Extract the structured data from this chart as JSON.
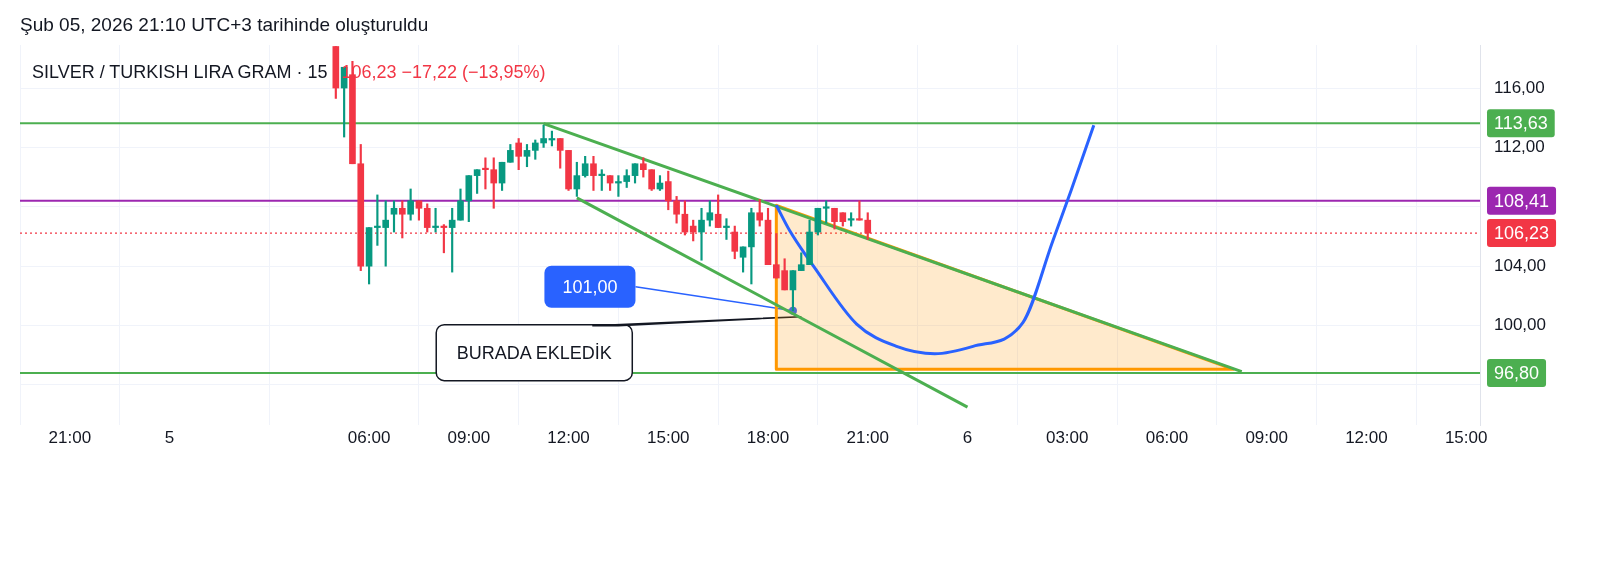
{
  "chart_data": {
    "type": "candlestick",
    "title": "Şub 05, 2026 21:10 UTC+3 tarihinde oluşturuldu",
    "subtitle": "SILVER / TURKISH LIRA GRAM · 15",
    "x": [
      "2026-02-05T05:00",
      "2026-02-05T05:15",
      "2026-02-05T05:30",
      "2026-02-05T05:45",
      "2026-02-05T06:00",
      "2026-02-05T06:15",
      "2026-02-05T06:30",
      "2026-02-05T06:45",
      "2026-02-05T07:00",
      "2026-02-05T07:15",
      "2026-02-05T07:30",
      "2026-02-05T07:45",
      "2026-02-05T08:00",
      "2026-02-05T08:15",
      "2026-02-05T08:30",
      "2026-02-05T08:45",
      "2026-02-05T09:00",
      "2026-02-05T09:15",
      "2026-02-05T09:30",
      "2026-02-05T09:45",
      "2026-02-05T10:00",
      "2026-02-05T10:15",
      "2026-02-05T10:30",
      "2026-02-05T10:45",
      "2026-02-05T11:00",
      "2026-02-05T11:15",
      "2026-02-05T11:30",
      "2026-02-05T11:45",
      "2026-02-05T12:00",
      "2026-02-05T12:15",
      "2026-02-05T12:30",
      "2026-02-05T12:45",
      "2026-02-05T13:00",
      "2026-02-05T13:15",
      "2026-02-05T13:30",
      "2026-02-05T13:45",
      "2026-02-05T14:00",
      "2026-02-05T14:15",
      "2026-02-05T14:30",
      "2026-02-05T14:45",
      "2026-02-05T15:00",
      "2026-02-05T15:15",
      "2026-02-05T15:30",
      "2026-02-05T15:45",
      "2026-02-05T16:00",
      "2026-02-05T16:15",
      "2026-02-05T16:30",
      "2026-02-05T16:45",
      "2026-02-05T17:00",
      "2026-02-05T17:15",
      "2026-02-05T17:30",
      "2026-02-05T17:45",
      "2026-02-05T18:00",
      "2026-02-05T18:15",
      "2026-02-05T18:30",
      "2026-02-05T18:45",
      "2026-02-05T19:00",
      "2026-02-05T19:15",
      "2026-02-05T19:30",
      "2026-02-05T19:45",
      "2026-02-05T20:00",
      "2026-02-05T20:15",
      "2026-02-05T20:30",
      "2026-02-05T20:45",
      "2026-02-05T21:00"
    ],
    "ohlc": [
      [
        118.8,
        118.8,
        115.3,
        116.0
      ],
      [
        116.0,
        117.4,
        112.7,
        117.4
      ],
      [
        116.9,
        117.8,
        110.9,
        110.9
      ],
      [
        110.9,
        112.2,
        103.7,
        104.0
      ],
      [
        104.0,
        106.6,
        102.8,
        106.6
      ],
      [
        106.6,
        108.8,
        105.4,
        106.7
      ],
      [
        106.6,
        108.4,
        104.0,
        107.1
      ],
      [
        107.5,
        108.4,
        106.3,
        107.9
      ],
      [
        107.9,
        108.4,
        105.9,
        107.5
      ],
      [
        107.5,
        109.2,
        107.1,
        108.4
      ],
      [
        108.4,
        108.4,
        107.1,
        107.9
      ],
      [
        107.9,
        108.2,
        106.3,
        106.6
      ],
      [
        106.6,
        107.9,
        106.3,
        106.7
      ],
      [
        106.7,
        106.8,
        104.9,
        106.6
      ],
      [
        106.6,
        107.9,
        103.6,
        107.1
      ],
      [
        107.1,
        109.2,
        107.1,
        108.4
      ],
      [
        108.4,
        110.1,
        107.0,
        110.1
      ],
      [
        110.1,
        110.5,
        108.9,
        110.5
      ],
      [
        110.6,
        111.3,
        109.2,
        110.5
      ],
      [
        110.5,
        111.3,
        107.9,
        109.6
      ],
      [
        109.6,
        111.0,
        109.1,
        111.0
      ],
      [
        111.0,
        112.2,
        111.0,
        111.8
      ],
      [
        112.3,
        112.6,
        110.5,
        111.4
      ],
      [
        111.4,
        112.2,
        110.7,
        111.8
      ],
      [
        111.8,
        112.5,
        111.2,
        112.3
      ],
      [
        112.3,
        113.5,
        112.0,
        112.6
      ],
      [
        112.5,
        113.1,
        112.1,
        112.6
      ],
      [
        112.6,
        112.6,
        110.6,
        111.8
      ],
      [
        111.8,
        111.8,
        109.1,
        109.2
      ],
      [
        109.2,
        111.0,
        108.7,
        110.1
      ],
      [
        110.1,
        111.4,
        110.0,
        110.9
      ],
      [
        110.9,
        111.4,
        109.1,
        110.1
      ],
      [
        110.1,
        110.5,
        109.1,
        110.2
      ],
      [
        110.1,
        110.1,
        109.1,
        109.6
      ],
      [
        109.6,
        110.1,
        108.7,
        109.7
      ],
      [
        109.7,
        110.5,
        109.3,
        110.1
      ],
      [
        110.1,
        110.9,
        109.6,
        110.9
      ],
      [
        110.9,
        111.3,
        110.0,
        110.5
      ],
      [
        110.5,
        110.5,
        109.1,
        109.2
      ],
      [
        109.2,
        110.1,
        109.1,
        109.6
      ],
      [
        109.7,
        110.4,
        107.8,
        108.4
      ],
      [
        108.4,
        108.7,
        106.9,
        107.5
      ],
      [
        107.5,
        108.4,
        106.1,
        106.3
      ],
      [
        106.7,
        107.1,
        105.7,
        106.3
      ],
      [
        106.3,
        107.9,
        104.4,
        107.1
      ],
      [
        107.1,
        108.4,
        106.7,
        107.6
      ],
      [
        107.5,
        108.8,
        106.6,
        106.6
      ],
      [
        106.6,
        107.2,
        105.8,
        106.7
      ],
      [
        106.3,
        106.7,
        104.5,
        105.0
      ],
      [
        104.6,
        105.3,
        103.6,
        105.3
      ],
      [
        105.3,
        107.9,
        102.8,
        107.6
      ],
      [
        107.6,
        108.5,
        106.7,
        107.1
      ],
      [
        107.1,
        107.9,
        104.1,
        104.1
      ],
      [
        104.1,
        106.2,
        103.2,
        103.2
      ],
      [
        103.7,
        104.5,
        102.4,
        102.4
      ],
      [
        102.4,
        103.7,
        101.0,
        103.7
      ],
      [
        103.7,
        104.9,
        103.7,
        104.1
      ],
      [
        104.1,
        107.1,
        104.1,
        106.3
      ],
      [
        106.3,
        107.9,
        106.1,
        107.9
      ],
      [
        107.9,
        108.4,
        106.9,
        108.0
      ],
      [
        107.9,
        107.9,
        106.5,
        107.0
      ],
      [
        107.6,
        107.6,
        106.7,
        107.0
      ],
      [
        107.1,
        107.6,
        106.7,
        107.2
      ],
      [
        107.2,
        108.4,
        107.1,
        107.1
      ],
      [
        107.1,
        107.6,
        105.8,
        106.23
      ]
    ],
    "colors": [
      "#f23645",
      "#089981",
      "#f23645",
      "#f23645",
      "#089981",
      "#089981",
      "#089981",
      "#089981",
      "#f23645",
      "#089981",
      "#f23645",
      "#f23645",
      "#089981",
      "#f23645",
      "#089981",
      "#089981",
      "#089981",
      "#089981",
      "#f23645",
      "#f23645",
      "#089981",
      "#089981",
      "#f23645",
      "#089981",
      "#089981",
      "#089981",
      "#089981",
      "#f23645",
      "#f23645",
      "#089981",
      "#089981",
      "#f23645",
      "#089981",
      "#f23645",
      "#089981",
      "#089981",
      "#089981",
      "#f23645",
      "#f23645",
      "#089981",
      "#f23645",
      "#f23645",
      "#f23645",
      "#f23645",
      "#089981",
      "#089981",
      "#f23645",
      "#089981",
      "#f23645",
      "#089981",
      "#089981",
      "#f23645",
      "#f23645",
      "#f23645",
      "#f23645",
      "#089981",
      "#089981",
      "#089981",
      "#089981",
      "#089981",
      "#f23645",
      "#f23645",
      "#089981",
      "#f23645",
      "#f23645"
    ],
    "series": [
      {
        "type": "area",
        "color": "#ff9800",
        "x": [
          "2026-02-05T18:15",
          "2026-02-05T18:15",
          "2026-02-06T08:00",
          "2026-02-05T18:15"
        ],
        "values": [
          108.1,
          97.05,
          97.05,
          108.1
        ]
      },
      {
        "type": "line",
        "color": "#4caf50",
        "x": [
          "2026-02-05T11:15",
          "2026-02-06T08:15"
        ],
        "values": [
          113.6,
          96.9
        ]
      },
      {
        "type": "line",
        "color": "#4caf50",
        "x": [
          "2026-02-05T12:15",
          "2026-02-06T00:00"
        ],
        "values": [
          108.6,
          94.5
        ]
      },
      {
        "type": "line",
        "color": "#2962ff",
        "x": [
          "2026-02-05T18:15",
          "2026-02-05T18:39",
          "2026-02-05T19:24",
          "2026-02-05T20:40",
          "2026-02-05T21:52",
          "2026-02-05T23:01",
          "2026-02-06T00:10",
          "2026-02-06T01:40",
          "2026-02-06T02:34",
          "2026-02-06T03:07",
          "2026-02-06T03:48"
        ],
        "values": [
          108.1,
          106.4,
          103.9,
          100.1,
          98.6,
          98.1,
          98.6,
          100.2,
          105.7,
          109.1,
          113.5
        ]
      }
    ],
    "xlim": [
      "2026-02-04T19:30",
      "2026-02-06T15:25"
    ],
    "xticks": [
      {
        "value": "2026-02-04T21:00",
        "label": "21:00"
      },
      {
        "value": "2026-02-05T00:00",
        "label": "5"
      },
      {
        "value": "2026-02-05T06:00",
        "label": "06:00"
      },
      {
        "value": "2026-02-05T09:00",
        "label": "09:00"
      },
      {
        "value": "2026-02-05T12:00",
        "label": "12:00"
      },
      {
        "value": "2026-02-05T15:00",
        "label": "15:00"
      },
      {
        "value": "2026-02-05T18:00",
        "label": "18:00"
      },
      {
        "value": "2026-02-05T21:00",
        "label": "21:00"
      },
      {
        "value": "2026-02-06T00:00",
        "label": "6"
      },
      {
        "value": "2026-02-06T03:00",
        "label": "03:00"
      },
      {
        "value": "2026-02-06T06:00",
        "label": "06:00"
      },
      {
        "value": "2026-02-06T09:00",
        "label": "09:00"
      },
      {
        "value": "2026-02-06T12:00",
        "label": "12:00"
      },
      {
        "value": "2026-02-06T15:00",
        "label": "15:00"
      }
    ],
    "ylim": [
      93.3,
      118.9
    ],
    "yticks": [
      {
        "value": 96,
        "label": null
      },
      {
        "value": 100,
        "label": "100,00"
      },
      {
        "value": 104,
        "label": "104,00"
      },
      {
        "value": 108,
        "label": null
      },
      {
        "value": 112,
        "label": "112,00"
      },
      {
        "value": 116,
        "label": "116,00"
      }
    ],
    "grid": true,
    "marker": "none",
    "ref_lines": [
      {
        "axis": "y",
        "value": 113.63,
        "label": "113,63",
        "color": "#4caf50",
        "line_style": "solid"
      },
      {
        "axis": "y",
        "value": 108.41,
        "label": "108,41",
        "color": "#9c27b0",
        "line_style": "solid"
      },
      {
        "axis": "y",
        "value": 106.23,
        "label": "106,23",
        "color": "#f23645",
        "line_style": "dotted"
      },
      {
        "axis": "y",
        "value": 96.8,
        "label": "96,80",
        "color": "#4caf50",
        "line_style": "solid"
      }
    ],
    "annotations": [
      "106,23  −17,22 (−13,95%)",
      {
        "text": "101,00",
        "x": "2026-02-05T18:45",
        "y": 101
      },
      {
        "text": "BURADA EKLEDİK",
        "x": "2026-02-05T19:00",
        "y": 100.6
      }
    ]
  }
}
